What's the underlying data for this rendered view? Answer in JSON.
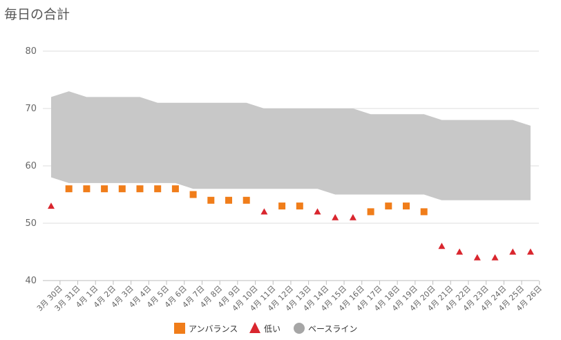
{
  "title": "毎日の合計",
  "chart_data": {
    "type": "scatter",
    "title": "毎日の合計",
    "categories": [
      "3月 30日",
      "3月 31日",
      "4月 1日",
      "4月 2日",
      "4月 3日",
      "4月 4日",
      "4月 5日",
      "4月 6日",
      "4月 7日",
      "4月 8日",
      "4月 9日",
      "4月 10日",
      "4月 11日",
      "4月 12日",
      "4月 13日",
      "4月 14日",
      "4月 15日",
      "4月 16日",
      "4月 17日",
      "4月 18日",
      "4月 19日",
      "4月 20日",
      "4月 21日",
      "4月 22日",
      "4月 23日",
      "4月 24日",
      "4月 25日",
      "4月 26日"
    ],
    "ylim": [
      40,
      80
    ],
    "yticks": [
      40,
      50,
      60,
      70,
      80
    ],
    "grid": true,
    "legend_position": "bottom",
    "series": [
      {
        "name": "アンバランス",
        "marker": "square",
        "color": "#f07d1a",
        "values": [
          null,
          56,
          56,
          56,
          56,
          56,
          56,
          56,
          55,
          54,
          54,
          54,
          null,
          53,
          53,
          null,
          null,
          null,
          52,
          53,
          53,
          52,
          null,
          null,
          null,
          null,
          null,
          null
        ]
      },
      {
        "name": "低い",
        "marker": "triangle",
        "color": "#d9262e",
        "values": [
          53,
          null,
          null,
          null,
          null,
          null,
          null,
          null,
          null,
          null,
          null,
          null,
          52,
          null,
          null,
          52,
          51,
          51,
          null,
          null,
          null,
          null,
          46,
          45,
          44,
          44,
          45,
          45
        ]
      },
      {
        "name": "ベースライン",
        "marker": "circle",
        "color": "#a6a6a6",
        "kind": "band",
        "upper": [
          72,
          73,
          72,
          72,
          72,
          72,
          71,
          71,
          71,
          71,
          71,
          71,
          70,
          70,
          70,
          70,
          70,
          70,
          69,
          69,
          69,
          69,
          68,
          68,
          68,
          68,
          68,
          67
        ],
        "lower": [
          58,
          57,
          57,
          57,
          57,
          57,
          57,
          57,
          56,
          56,
          56,
          56,
          56,
          56,
          56,
          56,
          55,
          55,
          55,
          55,
          55,
          55,
          54,
          54,
          54,
          54,
          54,
          54
        ]
      }
    ]
  }
}
